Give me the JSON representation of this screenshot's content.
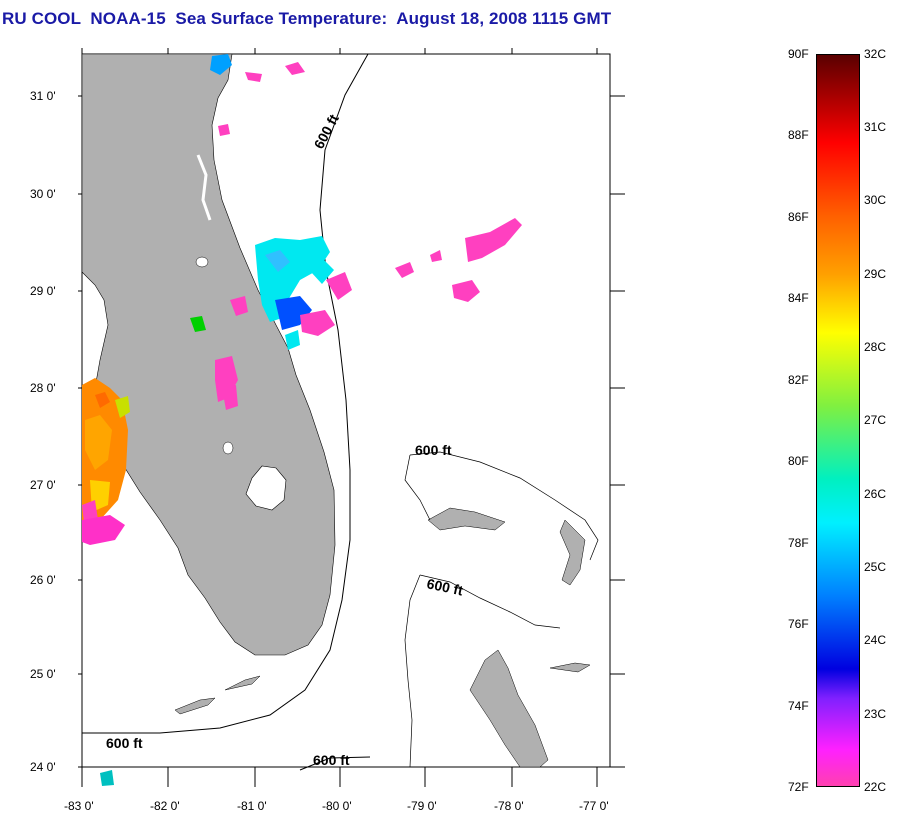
{
  "title": "RU COOL  NOAA-15  Sea Surface Temperature:  August 18, 2008 1115 GMT",
  "lat_ticks": [
    "31 0'",
    "30 0'",
    "29 0'",
    "28 0'",
    "27 0'",
    "26 0'",
    "25 0'",
    "24 0'"
  ],
  "lon_ticks": [
    "-83 0'",
    "-82 0'",
    "-81 0'",
    "-80 0'",
    "-79 0'",
    "-78 0'",
    "-77 0'"
  ],
  "contour_label": "600 ft",
  "colorbar": {
    "fahrenheit": [
      "90F",
      "88F",
      "86F",
      "84F",
      "82F",
      "80F",
      "78F",
      "76F",
      "74F",
      "72F"
    ],
    "celsius": [
      "32C",
      "31C",
      "30C",
      "29C",
      "28C",
      "27C",
      "26C",
      "25C",
      "24C",
      "23C",
      "22C"
    ]
  },
  "colors": {
    "title": "#1a1aa6",
    "land": "#b0b0b0"
  }
}
